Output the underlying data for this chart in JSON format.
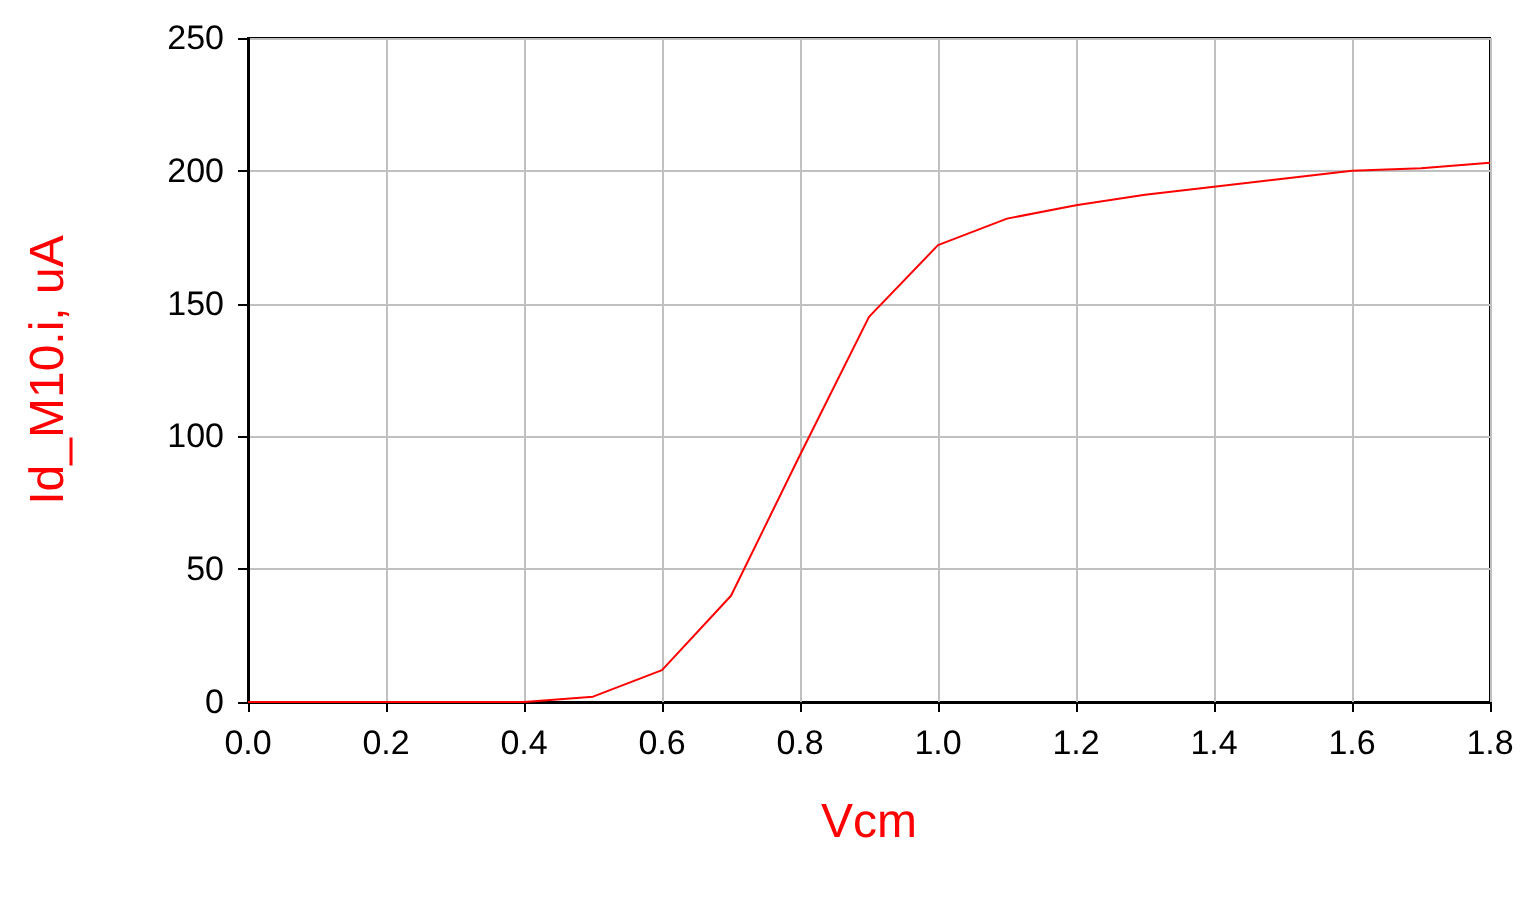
{
  "chart_data": {
    "type": "line",
    "xlabel": "Vcm",
    "ylabel": "Id_M10.i, uA",
    "x": [
      0,
      0.1,
      0.2,
      0.3,
      0.4,
      0.5,
      0.6,
      0.7,
      0.8,
      0.9,
      1.0,
      1.1,
      1.2,
      1.3,
      1.4,
      1.5,
      1.6,
      1.7,
      1.8
    ],
    "series": [
      {
        "color": "#ff0000",
        "values": [
          0,
          0,
          0,
          0,
          0,
          2,
          12,
          40,
          93,
          145,
          172,
          182,
          187,
          191,
          194,
          197,
          200,
          201,
          203
        ]
      }
    ],
    "xlim": [
      0,
      1.8
    ],
    "xticks": [
      {
        "value": 0,
        "label": "0.0"
      },
      {
        "value": 0.2,
        "label": "0.2"
      },
      {
        "value": 0.4,
        "label": "0.4"
      },
      {
        "value": 0.6,
        "label": "0.6"
      },
      {
        "value": 0.8,
        "label": "0.8"
      },
      {
        "value": 1.0,
        "label": "1.0"
      },
      {
        "value": 1.2,
        "label": "1.2"
      },
      {
        "value": 1.4,
        "label": "1.4"
      },
      {
        "value": 1.6,
        "label": "1.6"
      },
      {
        "value": 1.8,
        "label": "1.8"
      }
    ],
    "ylim": [
      0,
      250
    ],
    "yticks": [
      0,
      50,
      100,
      150,
      200,
      250
    ],
    "grid": true,
    "marker": "none",
    "line_style": "solid"
  }
}
